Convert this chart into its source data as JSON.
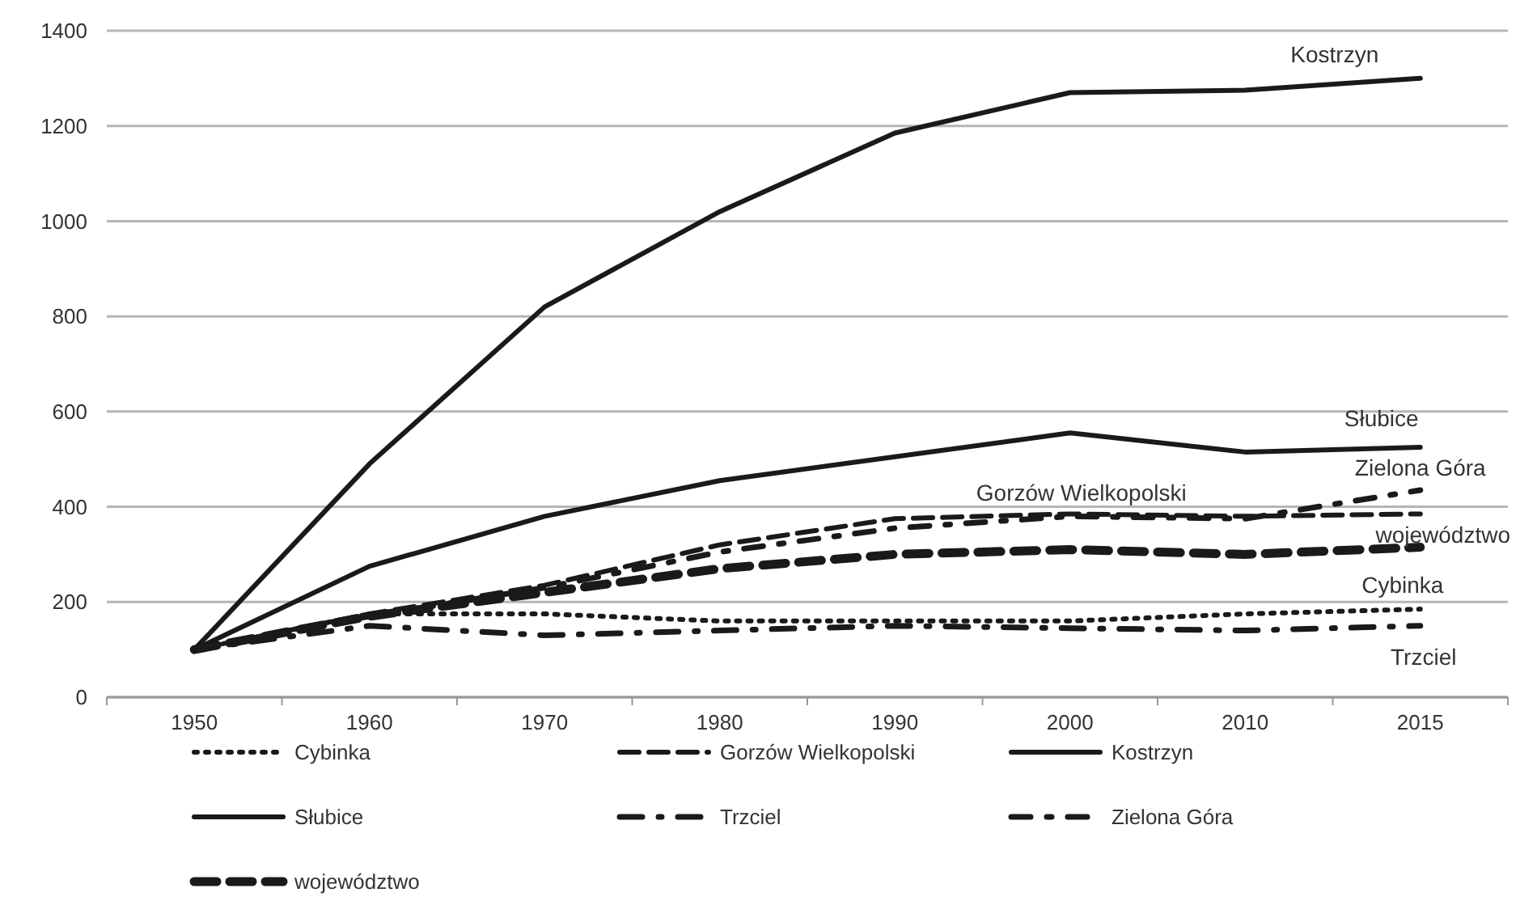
{
  "chart_data": {
    "type": "line",
    "categories": [
      "1950",
      "1960",
      "1970",
      "1980",
      "1990",
      "2000",
      "2010",
      "2015"
    ],
    "series": [
      {
        "name": "Cybinka",
        "color": "#1a1a1a",
        "line_style": "dotted",
        "values": [
          100,
          175,
          175,
          160,
          160,
          160,
          175,
          185
        ]
      },
      {
        "name": "Gorzów Wielkopolski",
        "color": "#1a1a1a",
        "line_style": "dashed",
        "values": [
          100,
          175,
          235,
          320,
          375,
          385,
          380,
          385
        ]
      },
      {
        "name": "Kostrzyn",
        "color": "#1a1a1a",
        "line_style": "solid",
        "values": [
          100,
          490,
          820,
          1020,
          1185,
          1270,
          1275,
          1300
        ]
      },
      {
        "name": "Słubice",
        "color": "#1a1a1a",
        "line_style": "solid",
        "values": [
          100,
          275,
          380,
          455,
          505,
          555,
          515,
          525
        ]
      },
      {
        "name": "Trzciel",
        "color": "#1a1a1a",
        "line_style": "dashed",
        "values": [
          100,
          150,
          130,
          140,
          150,
          145,
          140,
          150
        ]
      },
      {
        "name": "Zielona Góra",
        "color": "#1a1a1a",
        "line_style": "dashed",
        "values": [
          100,
          170,
          230,
          305,
          355,
          380,
          375,
          435
        ]
      },
      {
        "name": "województwo",
        "color": "#1a1a1a",
        "line_style": "dashed",
        "values": [
          100,
          170,
          220,
          270,
          300,
          310,
          300,
          315
        ]
      }
    ],
    "ylim": [
      0,
      1400
    ],
    "yticks": [
      0,
      200,
      400,
      600,
      800,
      1000,
      1200,
      1400
    ],
    "grid": "y",
    "legend": "bottom",
    "marker": "none"
  }
}
